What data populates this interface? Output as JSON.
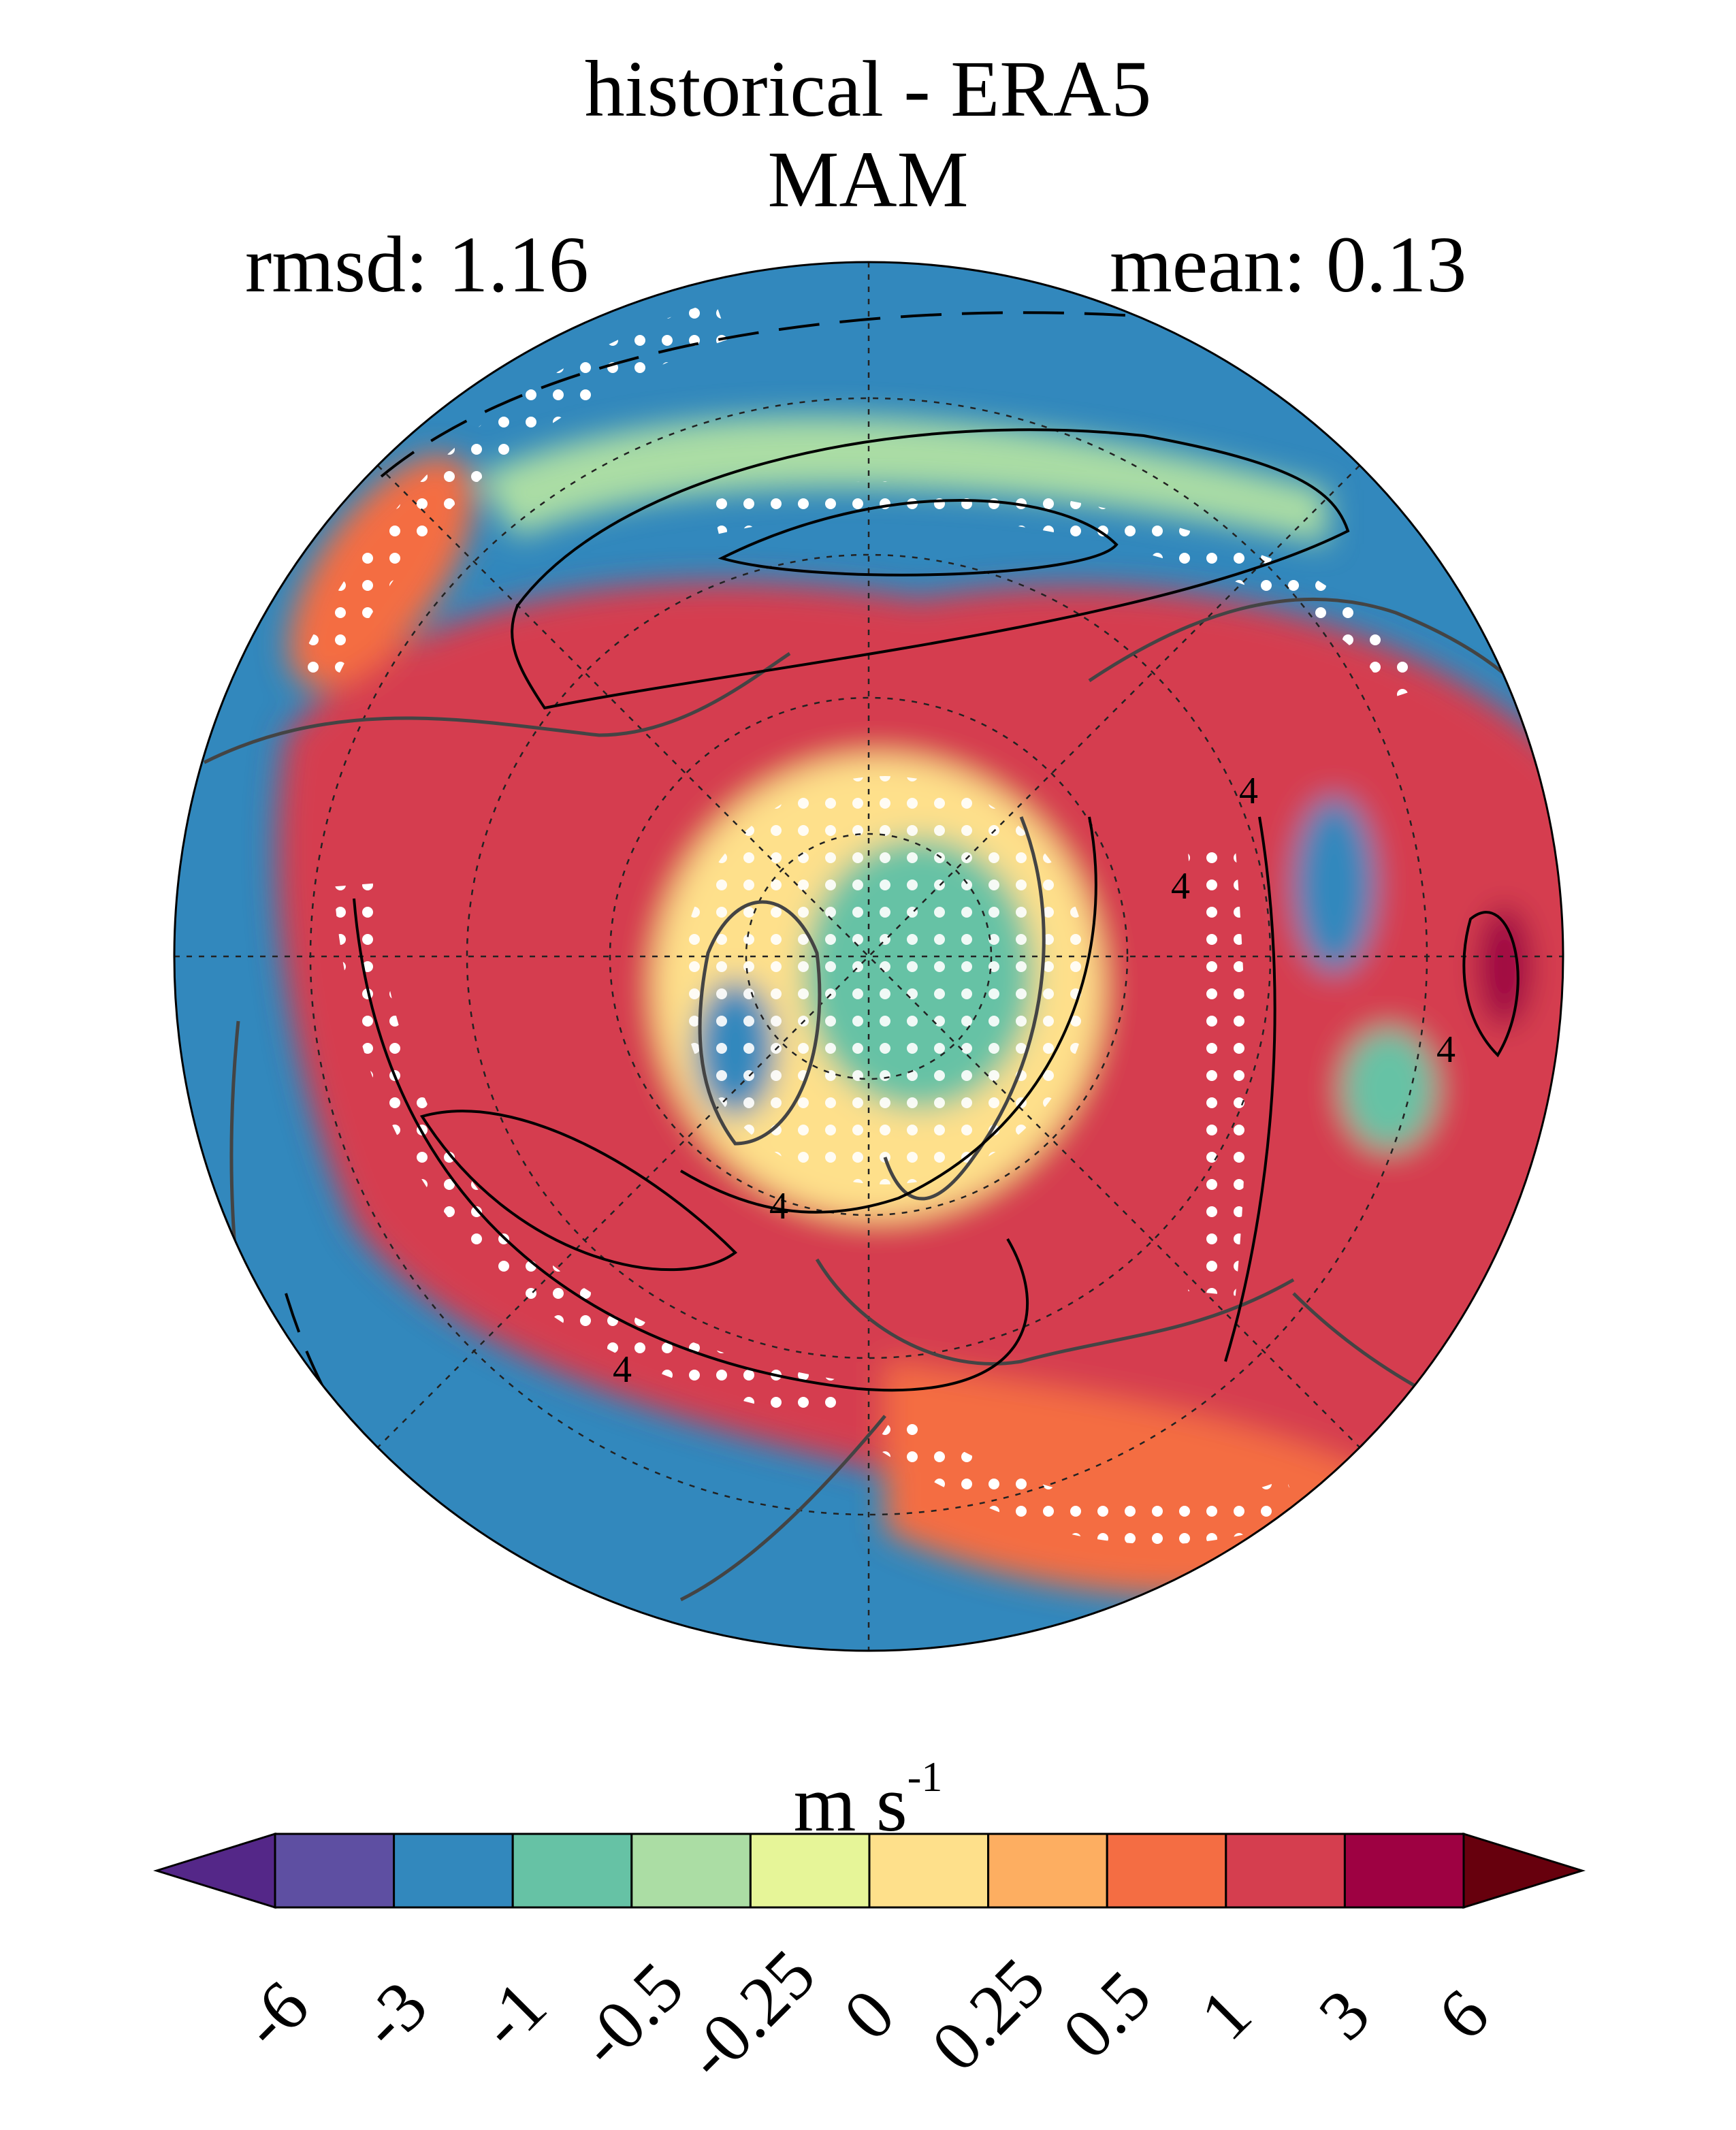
{
  "header": {
    "title": "historical - ERA5",
    "season": "MAM",
    "rmsd_label": "rmsd: 1.16",
    "mean_label": "mean: 0.13"
  },
  "stats": {
    "rmsd": 1.16,
    "mean": 0.13
  },
  "map": {
    "projection": "north polar stereographic",
    "contour_label": "4",
    "stippling": "white dots",
    "colors": {
      "deep_positive": "#9e0142",
      "positive": "#d53e4f",
      "mid_positive": "#f46d43",
      "low_positive": "#fdae61",
      "near_zero_pos": "#fee08b",
      "near_zero_neg": "#e6f598",
      "low_negative": "#abdda4",
      "mid_negative": "#66c2a5",
      "negative": "#3288bd",
      "deep_negative": "#5e4fa2"
    }
  },
  "colorbar": {
    "unit_base": "m s",
    "unit_exponent": "-1",
    "ticks": [
      "-6",
      "-3",
      "-1",
      "-0.5",
      "-0.25",
      "0",
      "0.25",
      "0.5",
      "1",
      "3",
      "6"
    ],
    "colors": [
      "#5e4fa2",
      "#3288bd",
      "#66c2a5",
      "#abdda4",
      "#e6f598",
      "#fee08b",
      "#fdae61",
      "#f46d43",
      "#d53e4f",
      "#9e0142"
    ],
    "extend_low_color": "#542788",
    "extend_high_color": "#67000d"
  }
}
